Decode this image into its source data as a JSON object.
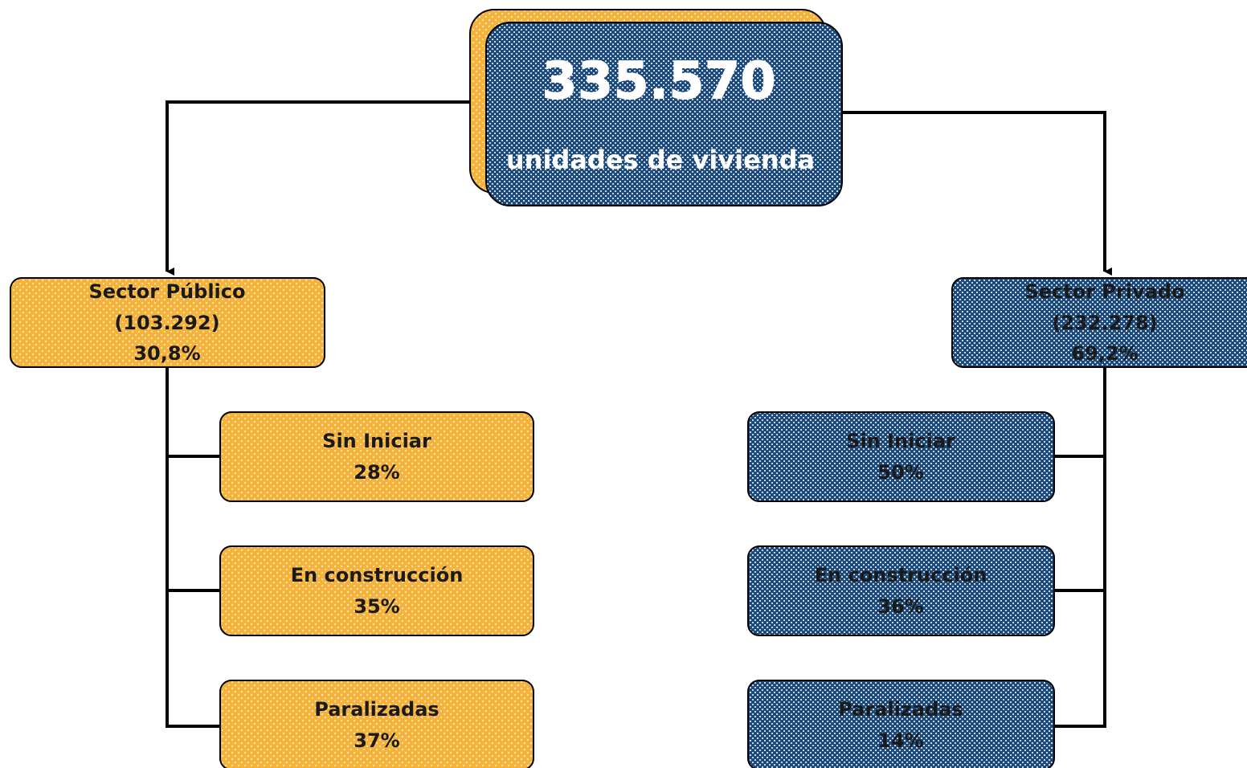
{
  "root": {
    "value": "335.570",
    "label": "unidades de vivienda"
  },
  "branches": [
    {
      "title": "Sector Público",
      "count": "(103.292)",
      "share": "30,8%",
      "items": [
        {
          "label": "Sin Iniciar",
          "share": "28%"
        },
        {
          "label": "En construcción",
          "share": "35%"
        },
        {
          "label": "Paralizadas",
          "share": "37%"
        }
      ]
    },
    {
      "title": "Sector Privado",
      "count": "(232.278)",
      "share": "69,2%",
      "items": [
        {
          "label": "Sin Iniciar",
          "share": "50%"
        },
        {
          "label": "En construcción",
          "share": "36%"
        },
        {
          "label": "Paralizadas",
          "share": "14%"
        }
      ]
    }
  ]
}
